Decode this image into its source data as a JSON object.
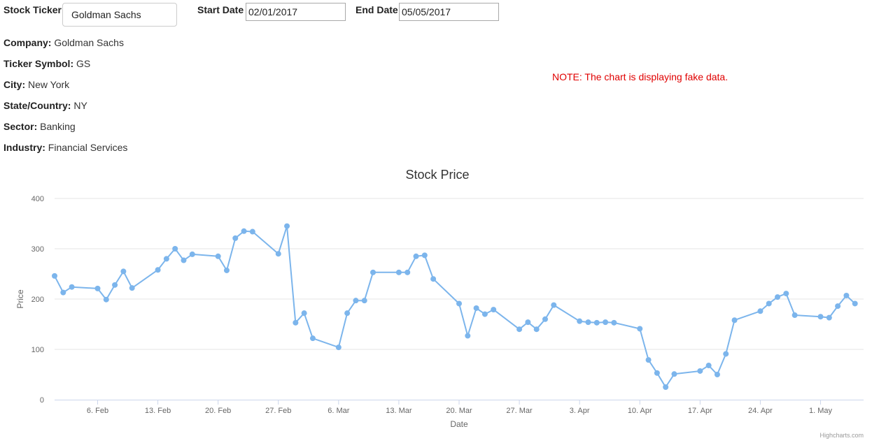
{
  "form": {
    "ticker_label": "Stock Ticker",
    "ticker_value": "Goldman Sachs",
    "start_label": "Start Date",
    "start_value": "02/01/2017",
    "end_label": "End Date",
    "end_value": "05/05/2017"
  },
  "info": [
    {
      "key": "Company:",
      "value": "Goldman Sachs"
    },
    {
      "key": "Ticker Symbol:",
      "value": "GS"
    },
    {
      "key": "City:",
      "value": "New York"
    },
    {
      "key": "State/Country:",
      "value": "NY"
    },
    {
      "key": "Sector:",
      "value": "Banking"
    },
    {
      "key": "Industry:",
      "value": "Financial Services"
    }
  ],
  "note": "NOTE: The chart is displaying fake data.",
  "credit": "Highcharts.com",
  "colors": {
    "series": "#7cb5ec",
    "note": "#e00000",
    "grid": "#e6e6e6"
  },
  "chart_data": {
    "type": "line",
    "title": "Stock Price",
    "xlabel": "Date",
    "ylabel": "Price",
    "ylim": [
      0,
      400
    ],
    "yticks": [
      0,
      100,
      200,
      300,
      400
    ],
    "xlim": [
      "2017-02-01",
      "2017-05-06"
    ],
    "xticks": [
      {
        "date": "2017-02-06",
        "label": "6. Feb"
      },
      {
        "date": "2017-02-13",
        "label": "13. Feb"
      },
      {
        "date": "2017-02-20",
        "label": "20. Feb"
      },
      {
        "date": "2017-02-27",
        "label": "27. Feb"
      },
      {
        "date": "2017-03-06",
        "label": "6. Mar"
      },
      {
        "date": "2017-03-13",
        "label": "13. Mar"
      },
      {
        "date": "2017-03-20",
        "label": "20. Mar"
      },
      {
        "date": "2017-03-27",
        "label": "27. Mar"
      },
      {
        "date": "2017-04-03",
        "label": "3. Apr"
      },
      {
        "date": "2017-04-10",
        "label": "10. Apr"
      },
      {
        "date": "2017-04-17",
        "label": "17. Apr"
      },
      {
        "date": "2017-04-24",
        "label": "24. Apr"
      },
      {
        "date": "2017-05-01",
        "label": "1. May"
      }
    ],
    "grid": true,
    "legend": "none",
    "points": [
      [
        "2017-02-01",
        246
      ],
      [
        "2017-02-02",
        213
      ],
      [
        "2017-02-03",
        224
      ],
      [
        "2017-02-06",
        221
      ],
      [
        "2017-02-07",
        199
      ],
      [
        "2017-02-08",
        228
      ],
      [
        "2017-02-09",
        255
      ],
      [
        "2017-02-10",
        222
      ],
      [
        "2017-02-13",
        258
      ],
      [
        "2017-02-14",
        280
      ],
      [
        "2017-02-15",
        300
      ],
      [
        "2017-02-16",
        277
      ],
      [
        "2017-02-17",
        289
      ],
      [
        "2017-02-20",
        285
      ],
      [
        "2017-02-21",
        257
      ],
      [
        "2017-02-22",
        321
      ],
      [
        "2017-02-23",
        335
      ],
      [
        "2017-02-24",
        334
      ],
      [
        "2017-02-27",
        290
      ],
      [
        "2017-02-28",
        345
      ],
      [
        "2017-03-01",
        153
      ],
      [
        "2017-03-02",
        172
      ],
      [
        "2017-03-03",
        122
      ],
      [
        "2017-03-06",
        104
      ],
      [
        "2017-03-07",
        172
      ],
      [
        "2017-03-08",
        197
      ],
      [
        "2017-03-09",
        197
      ],
      [
        "2017-03-10",
        253
      ],
      [
        "2017-03-13",
        253
      ],
      [
        "2017-03-14",
        253
      ],
      [
        "2017-03-15",
        285
      ],
      [
        "2017-03-16",
        287
      ],
      [
        "2017-03-17",
        240
      ],
      [
        "2017-03-20",
        191
      ],
      [
        "2017-03-21",
        127
      ],
      [
        "2017-03-22",
        182
      ],
      [
        "2017-03-23",
        170
      ],
      [
        "2017-03-24",
        179
      ],
      [
        "2017-03-27",
        140
      ],
      [
        "2017-03-28",
        154
      ],
      [
        "2017-03-29",
        140
      ],
      [
        "2017-03-30",
        160
      ],
      [
        "2017-03-31",
        188
      ],
      [
        "2017-04-03",
        156
      ],
      [
        "2017-04-04",
        154
      ],
      [
        "2017-04-05",
        153
      ],
      [
        "2017-04-06",
        154
      ],
      [
        "2017-04-07",
        153
      ],
      [
        "2017-04-10",
        141
      ],
      [
        "2017-04-11",
        79
      ],
      [
        "2017-04-12",
        53
      ],
      [
        "2017-04-13",
        25
      ],
      [
        "2017-04-14",
        51
      ],
      [
        "2017-04-17",
        57
      ],
      [
        "2017-04-18",
        68
      ],
      [
        "2017-04-19",
        50
      ],
      [
        "2017-04-20",
        91
      ],
      [
        "2017-04-21",
        158
      ],
      [
        "2017-04-24",
        176
      ],
      [
        "2017-04-25",
        191
      ],
      [
        "2017-04-26",
        204
      ],
      [
        "2017-04-27",
        211
      ],
      [
        "2017-04-28",
        168
      ],
      [
        "2017-05-01",
        165
      ],
      [
        "2017-05-02",
        163
      ],
      [
        "2017-05-03",
        186
      ],
      [
        "2017-05-04",
        207
      ],
      [
        "2017-05-05",
        191
      ]
    ]
  }
}
